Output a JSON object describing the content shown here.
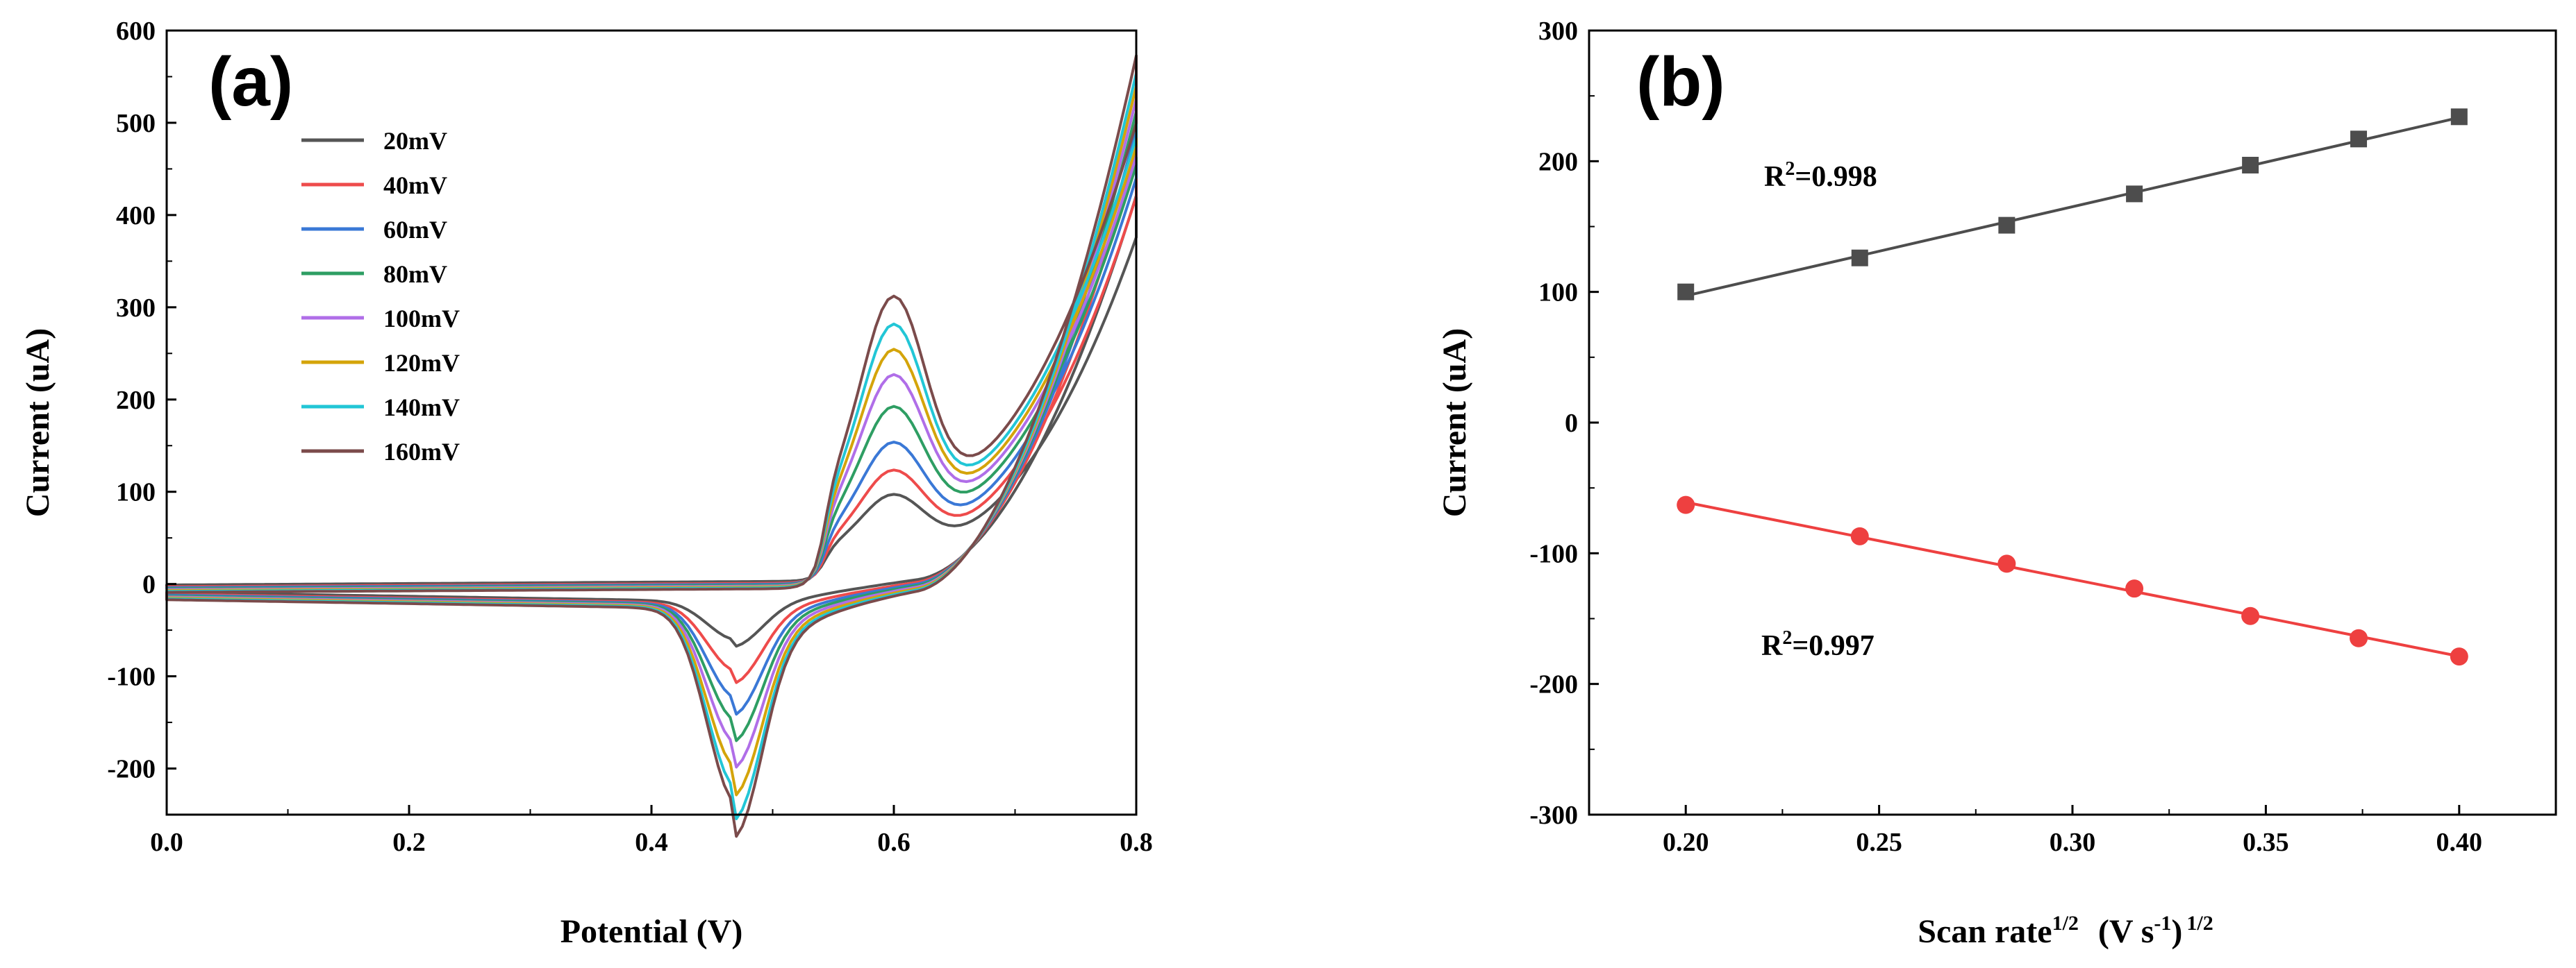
{
  "chart_data": [
    {
      "panel": "(a)",
      "type": "line",
      "xlabel": "Potential (V)",
      "ylabel": "Current (uA)",
      "xlim": [
        0.0,
        0.8
      ],
      "ylim": [
        -250,
        600
      ],
      "xticks": [
        0.0,
        0.2,
        0.4,
        0.6,
        0.8
      ],
      "yticks": [
        -200,
        -100,
        0,
        100,
        200,
        300,
        400,
        500,
        600
      ],
      "xtick_labels": [
        "0.0",
        "0.2",
        "0.4",
        "0.6",
        "0.8"
      ],
      "ytick_labels": [
        "-200",
        "-100",
        "0",
        "100",
        "200",
        "300",
        "400",
        "500",
        "600"
      ],
      "legend_position": "upper-left",
      "series": [
        {
          "name": "20mV",
          "color": "#555555",
          "peak_anodic": 80,
          "peak_cathodic": -35,
          "max_current": 385,
          "baseline": -5
        },
        {
          "name": "40mV",
          "color": "#ee4b4b",
          "peak_anodic": 100,
          "peak_cathodic": -62,
          "max_current": 435,
          "baseline": -7
        },
        {
          "name": "60mV",
          "color": "#3a78d6",
          "peak_anodic": 122,
          "peak_cathodic": -86,
          "max_current": 460,
          "baseline": -8
        },
        {
          "name": "80mV",
          "color": "#2e9e63",
          "peak_anodic": 150,
          "peak_cathodic": -106,
          "max_current": 480,
          "baseline": -9
        },
        {
          "name": "100mV",
          "color": "#b06ee8",
          "peak_anodic": 175,
          "peak_cathodic": -126,
          "max_current": 495,
          "baseline": -10
        },
        {
          "name": "120mV",
          "color": "#d4a40a",
          "peak_anodic": 195,
          "peak_cathodic": -147,
          "max_current": 510,
          "baseline": -11
        },
        {
          "name": "140mV",
          "color": "#22c6d6",
          "peak_anodic": 215,
          "peak_cathodic": -165,
          "max_current": 525,
          "baseline": -12
        },
        {
          "name": "160mV",
          "color": "#7b4b4b",
          "peak_anodic": 237,
          "peak_cathodic": -178,
          "max_current": 545,
          "baseline": -13
        }
      ]
    },
    {
      "panel": "(b)",
      "type": "scatter",
      "xlabel_main": "Scan rate",
      "xlabel_sup": "1/2",
      "xlabel_unit_a": "(V s",
      "xlabel_unit_sup": "-1",
      "xlabel_unit_b": ")",
      "xlabel_unit_sup2": "1/2",
      "ylabel": "Current (uA)",
      "xlim": [
        0.175,
        0.425
      ],
      "ylim": [
        -300,
        300
      ],
      "xticks": [
        0.2,
        0.25,
        0.3,
        0.35,
        0.4
      ],
      "yticks": [
        -300,
        -200,
        -100,
        0,
        100,
        200,
        300
      ],
      "xtick_labels": [
        "0.20",
        "0.25",
        "0.30",
        "0.35",
        "0.40"
      ],
      "ytick_labels": [
        "-300",
        "-200",
        "-100",
        "0",
        "100",
        "200",
        "300"
      ],
      "x": [
        0.2,
        0.245,
        0.283,
        0.316,
        0.346,
        0.374,
        0.4
      ],
      "series": [
        {
          "color": "#4d4d4d",
          "marker": "square",
          "values": [
            100,
            126,
            151,
            175,
            197,
            217,
            234
          ]
        },
        {
          "color": "#ee4040",
          "marker": "circle",
          "values": [
            -63,
            -87,
            -108,
            -127,
            -148,
            -165,
            -179
          ]
        }
      ],
      "annotations": [
        {
          "prefix": "R",
          "sup": "2",
          "suffix": "=0.998"
        },
        {
          "prefix": "R",
          "sup": "2",
          "suffix": "=0.997"
        }
      ]
    }
  ]
}
